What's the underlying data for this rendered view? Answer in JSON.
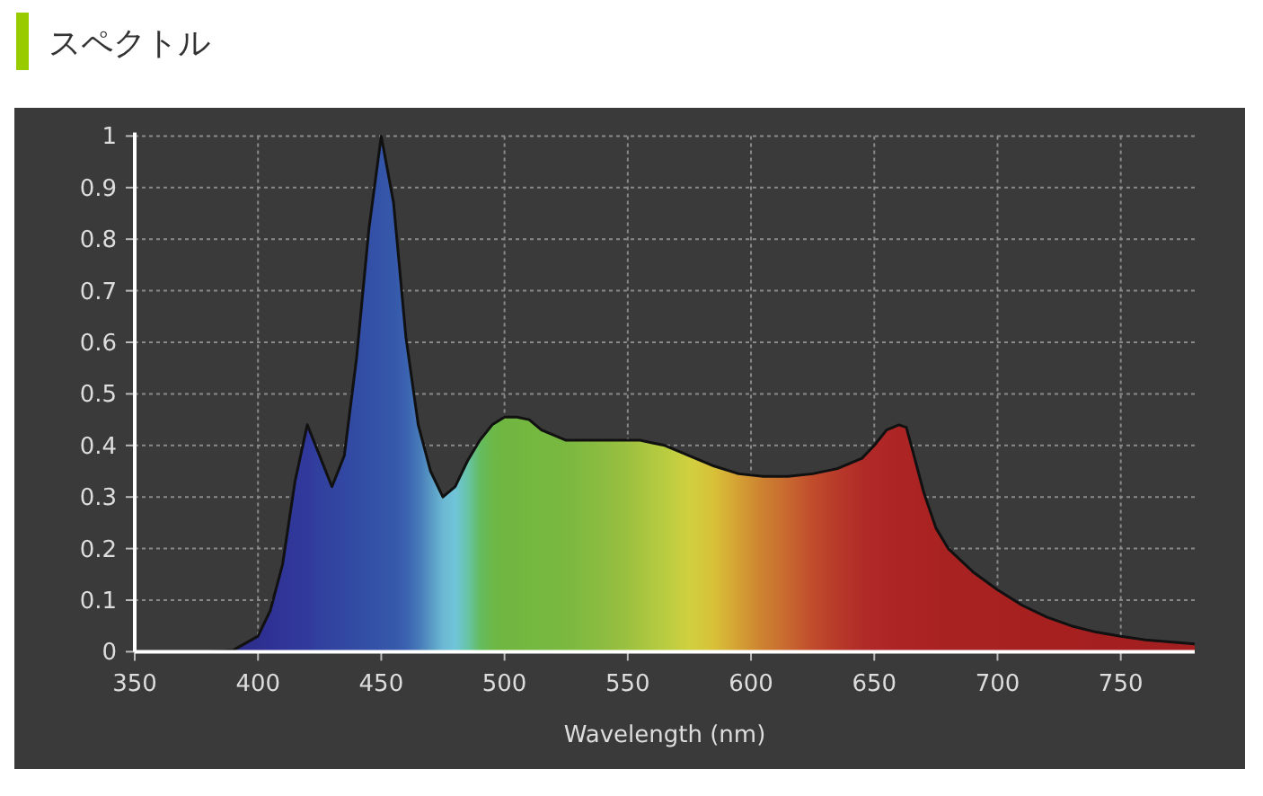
{
  "chart_data": {
    "type": "area",
    "title": "スペクトル",
    "xlabel": "Wavelength (nm)",
    "xlim": [
      350,
      780
    ],
    "xticks": [
      350,
      400,
      450,
      500,
      550,
      600,
      650,
      700,
      750
    ],
    "ylim": [
      0,
      1
    ],
    "yticks": [
      0,
      0.1,
      0.2,
      0.3,
      0.4,
      0.5,
      0.6,
      0.7,
      0.8,
      0.9,
      1
    ],
    "grid": true,
    "series": [
      {
        "color": "#111111",
        "x": [
          380,
          390,
          400,
          405,
          410,
          415,
          420,
          425,
          430,
          435,
          440,
          445,
          450,
          455,
          460,
          465,
          470,
          475,
          480,
          485,
          490,
          495,
          500,
          505,
          510,
          515,
          520,
          525,
          530,
          540,
          550,
          555,
          560,
          565,
          575,
          585,
          595,
          605,
          615,
          625,
          635,
          645,
          650,
          655,
          660,
          663,
          665,
          670,
          675,
          680,
          690,
          700,
          710,
          720,
          730,
          740,
          750,
          760,
          770,
          780
        ],
        "values": [
          0,
          0.003,
          0.03,
          0.08,
          0.17,
          0.33,
          0.44,
          0.38,
          0.32,
          0.38,
          0.57,
          0.82,
          1,
          0.87,
          0.61,
          0.44,
          0.35,
          0.3,
          0.32,
          0.37,
          0.41,
          0.44,
          0.455,
          0.455,
          0.45,
          0.43,
          0.42,
          0.41,
          0.41,
          0.41,
          0.41,
          0.41,
          0.405,
          0.4,
          0.38,
          0.36,
          0.345,
          0.34,
          0.34,
          0.345,
          0.355,
          0.375,
          0.4,
          0.43,
          0.44,
          0.435,
          0.4,
          0.31,
          0.24,
          0.2,
          0.155,
          0.12,
          0.09,
          0.067,
          0.05,
          0.038,
          0.03,
          0.023,
          0.019,
          0.015
        ],
        "colors": [
          "#2a2a80",
          "#2c2c88",
          "#2e3090",
          "#2f3294",
          "#303598",
          "#30389a",
          "#31399c",
          "#31409e",
          "#3244a0",
          "#3248a2",
          "#324ca4",
          "#3350a6",
          "#3454a8",
          "#3658aa",
          "#3a62b0",
          "#4678b8",
          "#5898c4",
          "#6cb8d4",
          "#70c4d8",
          "#68c4a8",
          "#64bc60",
          "#6cb848",
          "#70b640",
          "#72b640",
          "#74b840",
          "#76b840",
          "#78b840",
          "#7ab840",
          "#80ba40",
          "#8cbc40",
          "#9cc040",
          "#a6c440",
          "#b0c840",
          "#b8cc40",
          "#d0d040",
          "#d8c038",
          "#d4a034",
          "#cc8030",
          "#c86830",
          "#c04c2c",
          "#b83a2a",
          "#b02c28",
          "#b02828",
          "#ae2626",
          "#ac2424",
          "#ac2424",
          "#ac2424",
          "#aa2222",
          "#aa2222",
          "#a82222",
          "#a82222",
          "#a82222",
          "#a62020",
          "#a62020",
          "#a62020",
          "#a42020",
          "#a42020",
          "#a42020",
          "#a42020",
          "#a42020"
        ]
      }
    ]
  }
}
